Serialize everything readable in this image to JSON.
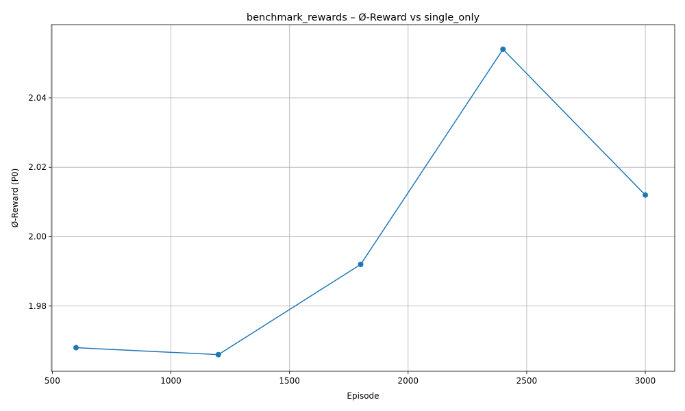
{
  "chart_data": {
    "type": "line",
    "title": "benchmark_rewards – Ø-Reward vs single_only",
    "xlabel": "Episode",
    "ylabel": "Ø-Reward (P0)",
    "xlim": [
      496,
      3124
    ],
    "ylim": [
      1.9612,
      2.0611
    ],
    "xticks": [
      500,
      1000,
      1500,
      2000,
      2500,
      3000
    ],
    "yticks": [
      1.98,
      2.0,
      2.02,
      2.04
    ],
    "grid": true,
    "marker": "circle",
    "color": "#1f77b4",
    "series": [
      {
        "x": [
          600,
          1200,
          1800,
          2400,
          3000
        ],
        "y": [
          1.968,
          1.966,
          1.992,
          2.054,
          2.012
        ]
      }
    ]
  }
}
